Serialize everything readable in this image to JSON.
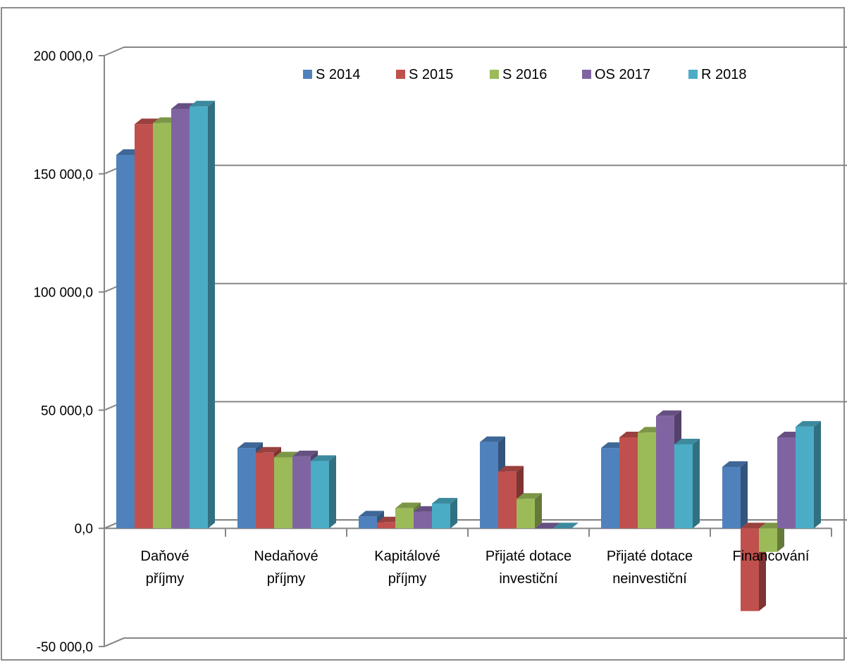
{
  "chart_data": {
    "type": "bar",
    "title": "",
    "xlabel": "",
    "ylabel": "",
    "ylim": [
      -50000,
      200000
    ],
    "yticks": [
      -50000,
      0,
      50000,
      100000,
      150000,
      200000
    ],
    "ytick_labels": [
      "-50 000,0",
      "0,0",
      "50 000,0",
      "100 000,0",
      "150 000,0",
      "200 000,0"
    ],
    "categories": [
      [
        "Daňové",
        "příjmy"
      ],
      [
        "Nedaňové",
        "příjmy"
      ],
      [
        "Kapitálové",
        "příjmy"
      ],
      [
        "Přijaté dotace",
        "investiční"
      ],
      [
        "Přijaté dotace",
        "neinvestiční"
      ],
      [
        "Financování"
      ]
    ],
    "series": [
      {
        "name": "S 2014",
        "color": "#4F81BD",
        "values": [
          158000,
          34000,
          5000,
          36500,
          34000,
          26000
        ]
      },
      {
        "name": "S 2015",
        "color": "#C0504D",
        "values": [
          171000,
          32000,
          2500,
          24000,
          38500,
          -35000
        ]
      },
      {
        "name": "S 2016",
        "color": "#9BBB59",
        "values": [
          171500,
          30000,
          8500,
          12500,
          40500,
          -10000
        ]
      },
      {
        "name": "OS 2017",
        "color": "#8064A2",
        "values": [
          177500,
          30500,
          7000,
          0,
          47500,
          38500
        ]
      },
      {
        "name": "R 2018",
        "color": "#4BACC6",
        "values": [
          178500,
          28500,
          10500,
          0,
          35500,
          43000
        ]
      }
    ],
    "legend_position": "top",
    "grid": true,
    "three_d": true
  }
}
